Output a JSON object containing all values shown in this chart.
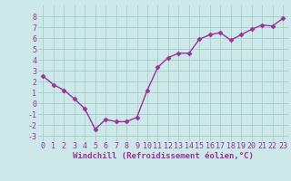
{
  "x": [
    0,
    1,
    2,
    3,
    4,
    5,
    6,
    7,
    8,
    9,
    10,
    11,
    12,
    13,
    14,
    15,
    16,
    17,
    18,
    19,
    20,
    21,
    22,
    23
  ],
  "y": [
    2.5,
    1.7,
    1.2,
    0.4,
    -0.5,
    -2.4,
    -1.5,
    -1.7,
    -1.7,
    -1.3,
    1.2,
    3.3,
    4.2,
    4.6,
    4.6,
    5.9,
    6.3,
    6.5,
    5.8,
    6.3,
    6.8,
    7.2,
    7.1,
    7.8
  ],
  "line_color": "#993399",
  "marker": "D",
  "markersize": 2.5,
  "linewidth": 1.0,
  "xlabel": "Windchill (Refroidissement éolien,°C)",
  "xlim": [
    -0.5,
    23.5
  ],
  "ylim": [
    -3.5,
    9.0
  ],
  "xticks": [
    0,
    1,
    2,
    3,
    4,
    5,
    6,
    7,
    8,
    9,
    10,
    11,
    12,
    13,
    14,
    15,
    16,
    17,
    18,
    19,
    20,
    21,
    22,
    23
  ],
  "yticks": [
    -3,
    -2,
    -1,
    0,
    1,
    2,
    3,
    4,
    5,
    6,
    7,
    8
  ],
  "bg_color": "#cce8e8",
  "grid_color": "#aacccc",
  "xlabel_fontsize": 6.5,
  "tick_fontsize": 6.0
}
